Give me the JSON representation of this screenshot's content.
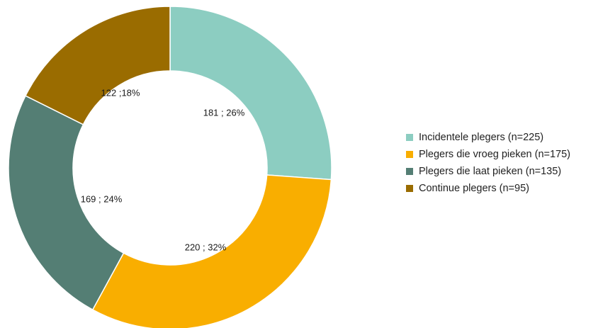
{
  "chart_data": {
    "type": "pie",
    "variant": "donut",
    "title": "",
    "slices": [
      {
        "value": 181,
        "percent": 26,
        "label": "181 ; 26%",
        "color": "#8ccdc1"
      },
      {
        "value": 220,
        "percent": 32,
        "label": "220 ; 32%",
        "color": "#f9ae00"
      },
      {
        "value": 169,
        "percent": 24,
        "label": "169 ; 24%",
        "color": "#547e74"
      },
      {
        "value": 122,
        "percent": 18,
        "label": "122 ;18%",
        "color": "#9a6c00"
      }
    ],
    "legend": {
      "position": "right",
      "items": [
        {
          "label": "Incidentele plegers (n=225)",
          "color": "#8ccdc1"
        },
        {
          "label": "Plegers die vroeg pieken (n=175)",
          "color": "#f9ae00"
        },
        {
          "label": "Plegers die laat pieken (n=135)",
          "color": "#547e74"
        },
        {
          "label": "Continue plegers (n=95)",
          "color": "#9a6c00"
        }
      ]
    }
  }
}
